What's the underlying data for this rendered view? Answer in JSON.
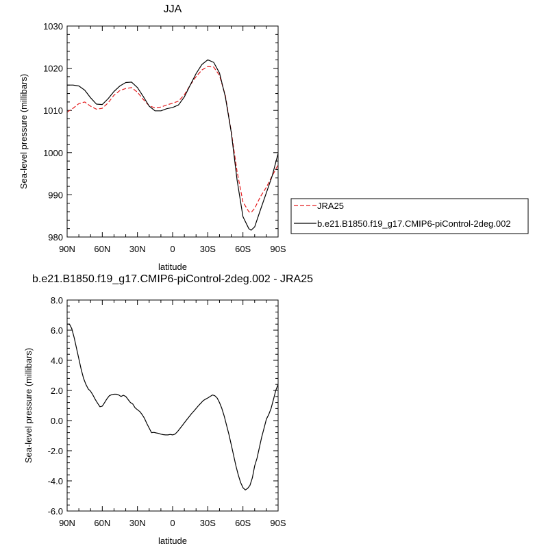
{
  "chart_data": [
    {
      "type": "line",
      "title": "JJA",
      "xlabel": "latitude",
      "ylabel": "Sea-level pressure (millibars)",
      "xlim": [
        90,
        -90
      ],
      "ylim": [
        980,
        1030
      ],
      "x_ticks": [
        90,
        60,
        30,
        0,
        -30,
        -60,
        -90
      ],
      "x_tick_labels": [
        "90N",
        "60N",
        "30N",
        "0",
        "30S",
        "60S",
        "90S"
      ],
      "y_ticks": [
        980,
        990,
        1000,
        1010,
        1020,
        1030
      ],
      "y_tick_labels": [
        "980",
        "990",
        "1000",
        "1010",
        "1020",
        "1030"
      ],
      "legend": "right",
      "series": [
        {
          "name": "JRA25",
          "color": "#e41a1c",
          "dash": "dashed",
          "x": [
            90,
            85,
            80,
            75,
            70,
            65,
            60,
            55,
            50,
            45,
            40,
            35,
            30,
            25,
            20,
            15,
            10,
            5,
            0,
            -5,
            -10,
            -15,
            -20,
            -25,
            -30,
            -35,
            -40,
            -45,
            -50,
            -55,
            -60,
            -65,
            -67,
            -70,
            -75,
            -80,
            -85,
            -90
          ],
          "y": [
            1009.6,
            1010.5,
            1011.6,
            1012.0,
            1011.0,
            1010.3,
            1010.5,
            1011.8,
            1013.6,
            1014.7,
            1015.2,
            1015.4,
            1014.3,
            1012.6,
            1011.1,
            1010.6,
            1010.8,
            1011.3,
            1011.7,
            1012.2,
            1013.7,
            1016.0,
            1018.0,
            1019.6,
            1020.4,
            1020.3,
            1018.3,
            1013.5,
            1005.0,
            995.5,
            988.3,
            986.0,
            985.8,
            986.8,
            989.6,
            991.8,
            994.5,
            997.1
          ]
        },
        {
          "name": "b.e21.B1850.f19_g17.CMIP6-piControl-2deg.002",
          "color": "#000000",
          "dash": "solid",
          "x": [
            90,
            85,
            80,
            75,
            70,
            65,
            60,
            55,
            50,
            45,
            40,
            35,
            30,
            25,
            20,
            15,
            10,
            5,
            0,
            -5,
            -10,
            -15,
            -20,
            -25,
            -30,
            -35,
            -40,
            -45,
            -50,
            -55,
            -60,
            -65,
            -67,
            -70,
            -75,
            -80,
            -85,
            -90
          ],
          "y": [
            1016.0,
            1016.0,
            1015.8,
            1014.8,
            1013.0,
            1011.5,
            1011.4,
            1012.8,
            1014.5,
            1015.8,
            1016.6,
            1016.7,
            1015.4,
            1013.3,
            1011.0,
            1009.9,
            1009.9,
            1010.4,
            1010.7,
            1011.3,
            1013.2,
            1016.0,
            1018.7,
            1020.9,
            1022.0,
            1021.4,
            1018.9,
            1013.2,
            1004.8,
            993.5,
            984.8,
            982.0,
            981.6,
            982.4,
            986.5,
            990.5,
            994.5,
            999.8
          ]
        }
      ]
    },
    {
      "type": "line",
      "title": "b.e21.B1850.f19_g17.CMIP6-piControl-2deg.002 - JRA25",
      "xlabel": "latitude",
      "ylabel": "Sea-level pressure (millibars)",
      "xlim": [
        90,
        -90
      ],
      "ylim": [
        -6,
        8
      ],
      "x_ticks": [
        90,
        60,
        30,
        0,
        -30,
        -60,
        -90
      ],
      "x_tick_labels": [
        "90N",
        "60N",
        "30N",
        "0",
        "30S",
        "60S",
        "90S"
      ],
      "y_ticks": [
        -6,
        -4,
        -2,
        0,
        2,
        4,
        6,
        8
      ],
      "y_tick_labels": [
        "-6.0",
        "-4.0",
        "-2.0",
        "0.0",
        "2.0",
        "4.0",
        "6.0",
        "8.0"
      ],
      "series": [
        {
          "color": "#000000",
          "dash": "solid",
          "x": [
            90,
            88,
            86,
            84,
            82,
            80,
            78,
            76,
            74,
            72,
            70,
            68,
            66,
            64,
            62,
            60,
            58,
            56,
            54,
            52,
            50,
            48,
            46,
            44,
            42,
            40,
            38,
            36,
            34,
            32,
            30,
            28,
            26,
            24,
            22,
            20,
            18,
            16,
            14,
            12,
            10,
            8,
            6,
            4,
            2,
            0,
            -2,
            -4,
            -6,
            -8,
            -10,
            -12,
            -14,
            -16,
            -18,
            -20,
            -22,
            -24,
            -26,
            -28,
            -30,
            -32,
            -34,
            -36,
            -38,
            -40,
            -42,
            -44,
            -46,
            -48,
            -50,
            -52,
            -54,
            -56,
            -58,
            -60,
            -62,
            -64,
            -66,
            -68,
            -70,
            -72,
            -74,
            -76,
            -78,
            -80,
            -82,
            -84,
            -86,
            -88,
            -90
          ],
          "y": [
            6.4,
            6.4,
            6.1,
            5.5,
            4.8,
            4.1,
            3.4,
            2.8,
            2.4,
            2.1,
            1.95,
            1.7,
            1.4,
            1.15,
            0.92,
            0.96,
            1.2,
            1.45,
            1.65,
            1.72,
            1.75,
            1.75,
            1.7,
            1.6,
            1.68,
            1.6,
            1.4,
            1.2,
            1.1,
            0.85,
            0.72,
            0.6,
            0.4,
            0.15,
            -0.2,
            -0.5,
            -0.8,
            -0.78,
            -0.82,
            -0.85,
            -0.9,
            -0.93,
            -0.95,
            -0.95,
            -0.92,
            -0.95,
            -0.9,
            -0.75,
            -0.55,
            -0.35,
            -0.15,
            0.05,
            0.25,
            0.45,
            0.62,
            0.8,
            0.98,
            1.15,
            1.32,
            1.42,
            1.5,
            1.6,
            1.7,
            1.65,
            1.5,
            1.2,
            0.8,
            0.3,
            -0.3,
            -0.9,
            -1.6,
            -2.3,
            -3.0,
            -3.6,
            -4.1,
            -4.45,
            -4.6,
            -4.5,
            -4.3,
            -3.8,
            -3.0,
            -2.5,
            -1.8,
            -1.1,
            -0.5,
            0.1,
            0.4,
            0.8,
            1.4,
            2.0,
            2.4
          ]
        }
      ]
    }
  ]
}
